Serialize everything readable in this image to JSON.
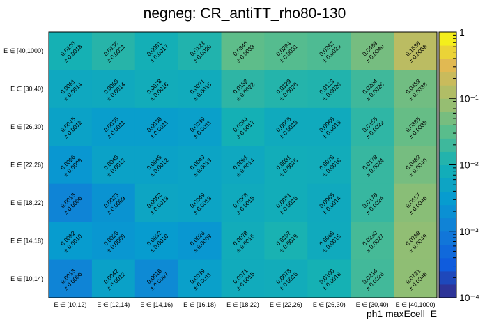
{
  "chart_data": {
    "type": "heatmap",
    "title": "negneg: CR_antiTT_rho80-130",
    "xlabel": "ph1 maxEcell_E",
    "ylabel": "",
    "x_categories": [
      "E ∈ [10,12)",
      "E ∈ [12,14)",
      "E ∈ [14,16)",
      "E ∈ [16,18)",
      "E ∈ [18,22)",
      "E ∈ [22,26)",
      "E ∈ [26,30)",
      "E ∈ [30,40)",
      "E ∈ [40,1000)"
    ],
    "y_categories": [
      "E ∈ [40,1000)",
      "E ∈ [30,40)",
      "E ∈ [26,30)",
      "E ∈ [22,26)",
      "E ∈ [18,22)",
      "E ∈ [14,18)",
      "E ∈ [10,14)"
    ],
    "values": [
      [
        0.01,
        0.0136,
        0.0091,
        0.0123,
        0.034,
        0.0294,
        0.0262,
        0.0489,
        0.1538
      ],
      [
        0.0061,
        0.0065,
        0.0078,
        0.0071,
        0.0152,
        0.0129,
        0.0123,
        0.0204,
        0.0453
      ],
      [
        0.0045,
        0.0036,
        0.0036,
        0.0039,
        0.0094,
        0.0068,
        0.0068,
        0.0155,
        0.0385
      ],
      [
        0.0026,
        0.0045,
        0.0045,
        0.0049,
        0.0061,
        0.0081,
        0.0078,
        0.0178,
        0.0489
      ],
      [
        0.0013,
        0.0023,
        0.0052,
        0.0049,
        0.0068,
        0.0081,
        0.0065,
        0.0178,
        0.0657
      ],
      [
        0.0032,
        0.0026,
        0.0032,
        0.0026,
        0.0078,
        0.0107,
        0.0068,
        0.023,
        0.0738
      ],
      [
        0.0013,
        0.0042,
        0.0016,
        0.0039,
        0.0071,
        0.0078,
        0.01,
        0.0214,
        0.0721
      ]
    ],
    "errors": [
      [
        0.0018,
        0.0021,
        0.0017,
        0.002,
        0.0033,
        0.0031,
        0.0029,
        0.004,
        0.0058
      ],
      [
        0.0014,
        0.0014,
        0.0016,
        0.0015,
        0.0022,
        0.002,
        0.002,
        0.0026,
        0.0038
      ],
      [
        0.0012,
        0.0011,
        0.0011,
        0.0011,
        0.0017,
        0.0015,
        0.0015,
        0.0022,
        0.0035
      ],
      [
        0.0009,
        0.0012,
        0.0012,
        0.0013,
        0.0014,
        0.0016,
        0.0016,
        0.0024,
        0.004
      ],
      [
        0.0006,
        0.0009,
        0.0013,
        0.0013,
        0.0015,
        0.0016,
        0.0014,
        0.0024,
        0.0046
      ],
      [
        0.001,
        0.0009,
        0.001,
        0.0009,
        0.0016,
        0.0019,
        0.0015,
        0.0027,
        0.0049
      ],
      [
        0.0006,
        0.0012,
        0.0007,
        0.0011,
        0.0015,
        0.0016,
        0.0018,
        0.0026,
        0.0048
      ]
    ],
    "colorbar": {
      "scale": "log",
      "range": [
        0.0001,
        1
      ],
      "tick_labels": [
        "1",
        "10⁻¹",
        "10⁻²",
        "10⁻³",
        "10⁻⁴"
      ],
      "tick_values": [
        1,
        0.1,
        0.01,
        0.001,
        0.0001
      ],
      "palette": "kBird"
    },
    "grid": false
  }
}
